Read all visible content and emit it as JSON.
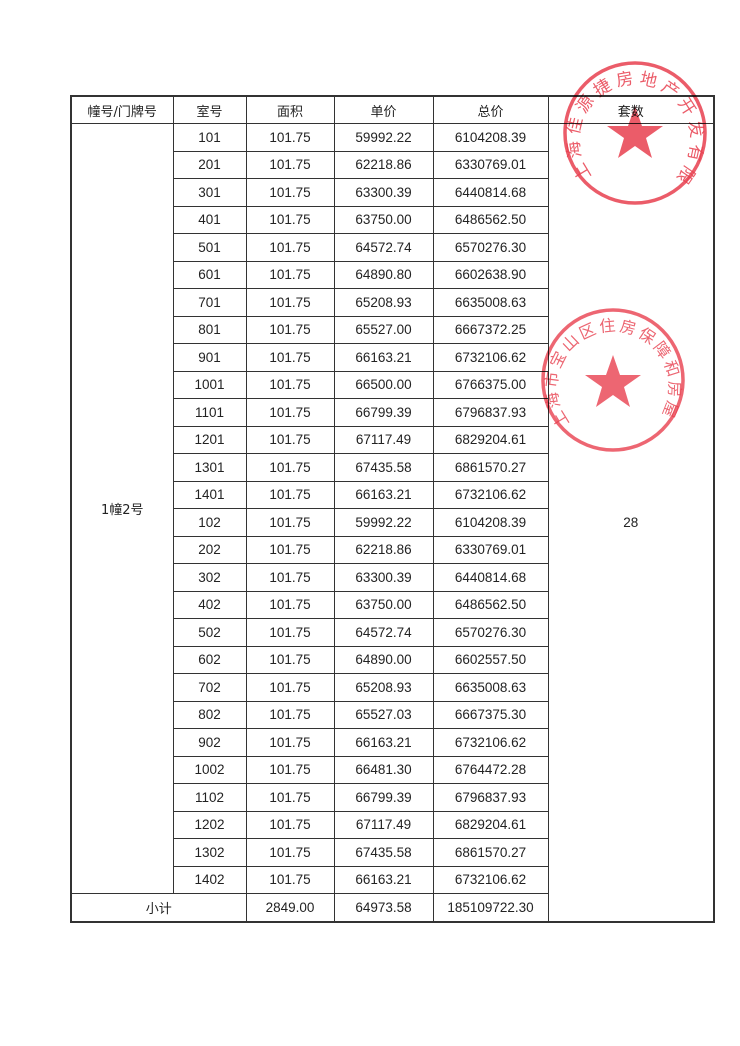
{
  "table": {
    "headers": [
      "幢号/门牌号",
      "室号",
      "面积",
      "单价",
      "总价",
      "套数"
    ],
    "building": "1幢2号",
    "count": "28",
    "rows": [
      [
        "101",
        "101.75",
        "59992.22",
        "6104208.39"
      ],
      [
        "201",
        "101.75",
        "62218.86",
        "6330769.01"
      ],
      [
        "301",
        "101.75",
        "63300.39",
        "6440814.68"
      ],
      [
        "401",
        "101.75",
        "63750.00",
        "6486562.50"
      ],
      [
        "501",
        "101.75",
        "64572.74",
        "6570276.30"
      ],
      [
        "601",
        "101.75",
        "64890.80",
        "6602638.90"
      ],
      [
        "701",
        "101.75",
        "65208.93",
        "6635008.63"
      ],
      [
        "801",
        "101.75",
        "65527.00",
        "6667372.25"
      ],
      [
        "901",
        "101.75",
        "66163.21",
        "6732106.62"
      ],
      [
        "1001",
        "101.75",
        "66500.00",
        "6766375.00"
      ],
      [
        "1101",
        "101.75",
        "66799.39",
        "6796837.93"
      ],
      [
        "1201",
        "101.75",
        "67117.49",
        "6829204.61"
      ],
      [
        "1301",
        "101.75",
        "67435.58",
        "6861570.27"
      ],
      [
        "1401",
        "101.75",
        "66163.21",
        "6732106.62"
      ],
      [
        "102",
        "101.75",
        "59992.22",
        "6104208.39"
      ],
      [
        "202",
        "101.75",
        "62218.86",
        "6330769.01"
      ],
      [
        "302",
        "101.75",
        "63300.39",
        "6440814.68"
      ],
      [
        "402",
        "101.75",
        "63750.00",
        "6486562.50"
      ],
      [
        "502",
        "101.75",
        "64572.74",
        "6570276.30"
      ],
      [
        "602",
        "101.75",
        "64890.00",
        "6602557.50"
      ],
      [
        "702",
        "101.75",
        "65208.93",
        "6635008.63"
      ],
      [
        "802",
        "101.75",
        "65527.03",
        "6667375.30"
      ],
      [
        "902",
        "101.75",
        "66163.21",
        "6732106.62"
      ],
      [
        "1002",
        "101.75",
        "66481.30",
        "6764472.28"
      ],
      [
        "1102",
        "101.75",
        "66799.39",
        "6796837.93"
      ],
      [
        "1202",
        "101.75",
        "67117.49",
        "6829204.61"
      ],
      [
        "1302",
        "101.75",
        "67435.58",
        "6861570.27"
      ],
      [
        "1402",
        "101.75",
        "66163.21",
        "6732106.62"
      ]
    ],
    "subtotal": {
      "label": "小计",
      "area": "2849.00",
      "unit_price": "64973.58",
      "total": "185109722.30"
    }
  },
  "stamps": [
    {
      "text": "上海佳源捷房地产开发有限公司",
      "color": "#e8404f"
    },
    {
      "text": "上海市宝山区住房保障和房屋管理局",
      "color": "#e8404f"
    }
  ]
}
